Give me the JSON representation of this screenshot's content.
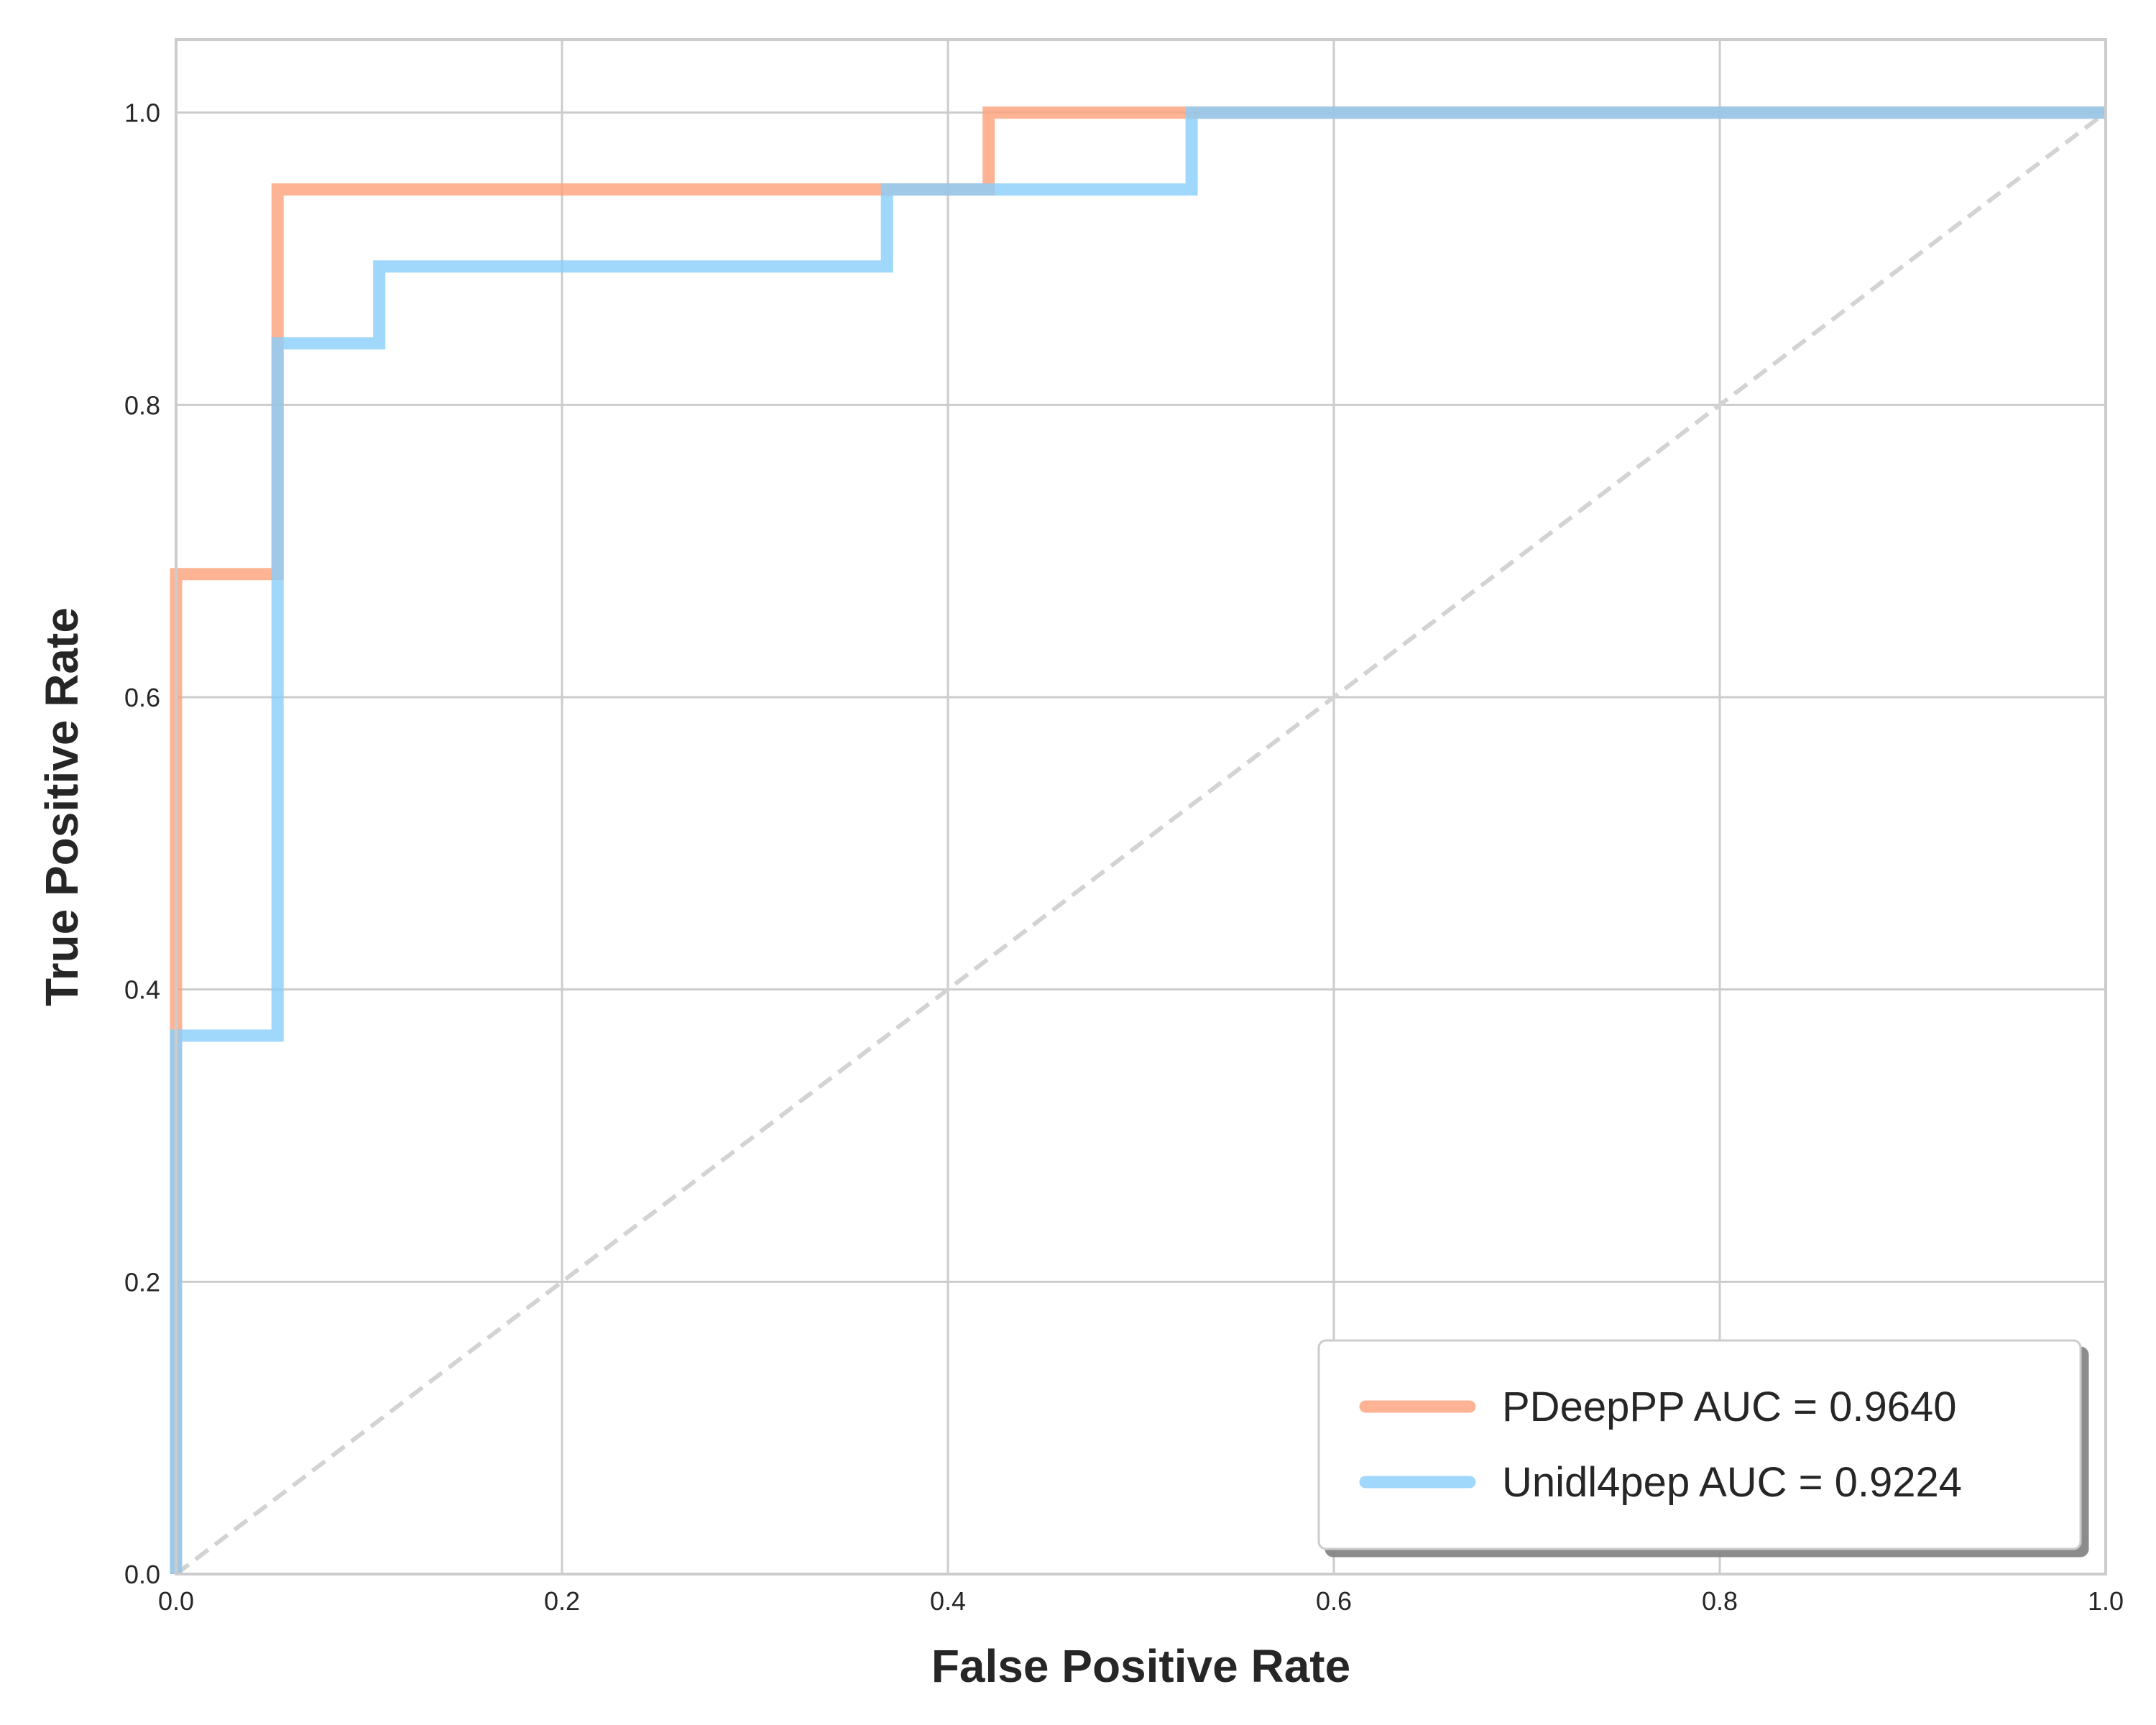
{
  "chart_data": {
    "type": "line",
    "xlabel": "False Positive Rate",
    "ylabel": "True Positive Rate",
    "xlim": [
      0,
      1
    ],
    "ylim": [
      0,
      1.05
    ],
    "xticks": [
      0.0,
      0.2,
      0.4,
      0.6,
      0.8,
      1.0
    ],
    "yticks": [
      0.0,
      0.2,
      0.4,
      0.6,
      0.8,
      1.0
    ],
    "xtick_labels": [
      "0.0",
      "0.2",
      "0.4",
      "0.6",
      "0.8",
      "1.0"
    ],
    "ytick_labels": [
      "0.0",
      "0.2",
      "0.4",
      "0.6",
      "0.8",
      "1.0"
    ],
    "grid": true,
    "legend_position": "lower-right",
    "series": [
      {
        "name": "PDeepPP AUC = 0.9640",
        "color": "#ffa07a",
        "x": [
          0.0,
          0.0,
          0.0526,
          0.0526,
          0.4211,
          0.4211,
          1.0
        ],
        "y": [
          0.0,
          0.6842,
          0.6842,
          0.9474,
          0.9474,
          1.0,
          1.0
        ]
      },
      {
        "name": "Unidl4pep AUC = 0.9224",
        "color": "#87cefa",
        "x": [
          0.0,
          0.0,
          0.0526,
          0.0526,
          0.1053,
          0.1053,
          0.3684,
          0.3684,
          0.5263,
          0.5263,
          1.0
        ],
        "y": [
          0.0,
          0.3684,
          0.3684,
          0.8421,
          0.8421,
          0.8947,
          0.8947,
          0.9474,
          0.9474,
          1.0,
          1.0
        ]
      }
    ],
    "reference_line": {
      "x": [
        0,
        1
      ],
      "y": [
        0,
        1
      ],
      "color": "#d3d3d3",
      "style": "dashed"
    }
  }
}
